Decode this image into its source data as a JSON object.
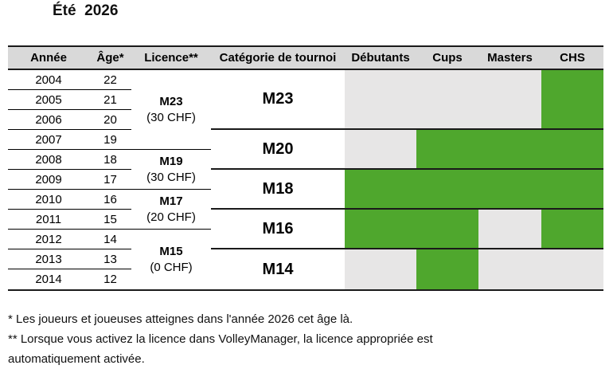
{
  "page": {
    "title": "Été  2026"
  },
  "table": {
    "headers": [
      "Année",
      "Âge*",
      "Licence**",
      "Catégorie de tournoi",
      "Débutants",
      "Cups",
      "Masters",
      "CHS"
    ],
    "rows": [
      {
        "year": "2004",
        "age": "22"
      },
      {
        "year": "2005",
        "age": "21"
      },
      {
        "year": "2006",
        "age": "20"
      },
      {
        "year": "2007",
        "age": "19"
      },
      {
        "year": "2008",
        "age": "18"
      },
      {
        "year": "2009",
        "age": "17"
      },
      {
        "year": "2010",
        "age": "16"
      },
      {
        "year": "2011",
        "age": "15"
      },
      {
        "year": "2012",
        "age": "14"
      },
      {
        "year": "2013",
        "age": "13"
      },
      {
        "year": "2014",
        "age": "12"
      }
    ],
    "licences": [
      {
        "name": "M23",
        "price": "(30 CHF)"
      },
      {
        "name": "M19",
        "price": "(30 CHF)"
      },
      {
        "name": "M17",
        "price": "(20 CHF)"
      },
      {
        "name": "M15",
        "price": "(0 CHF)"
      }
    ],
    "categories": [
      {
        "name": "M23",
        "cells": {
          "debutants": "no",
          "cups": "no",
          "masters": "no",
          "chs": "yes"
        }
      },
      {
        "name": "M20",
        "cells": {
          "debutants": "no",
          "cups": "yes",
          "masters": "yes",
          "chs": "yes"
        }
      },
      {
        "name": "M18",
        "cells": {
          "debutants": "yes",
          "cups": "yes",
          "masters": "yes",
          "chs": "yes"
        }
      },
      {
        "name": "M16",
        "cells": {
          "debutants": "yes",
          "cups": "yes",
          "masters": "no",
          "chs": "yes"
        }
      },
      {
        "name": "M14",
        "cells": {
          "debutants": "no",
          "cups": "yes",
          "masters": "no",
          "chs": "no"
        }
      }
    ],
    "legend_colors": {
      "allowed": "#4fa72d",
      "not_allowed": "#e7e6e6",
      "header_bg": "#d9d9d9"
    }
  },
  "footnotes": {
    "lines": [
      "* Les joueurs et joueuses atteignes dans l'année 2026 cet âge là.",
      "** Lorsque vous activez la licence dans VolleyManager, la licence appropriée est",
      "automatiquement activée."
    ]
  }
}
